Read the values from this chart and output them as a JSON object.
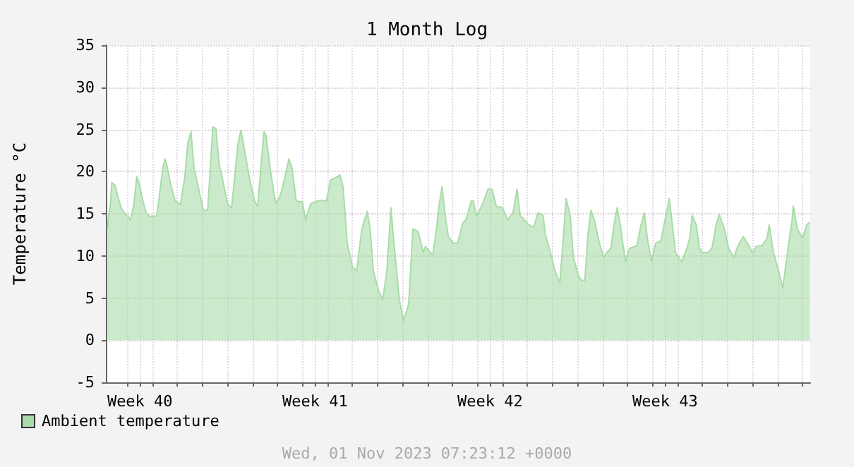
{
  "chart_data": {
    "type": "area",
    "title": "1 Month Log",
    "ylabel": "Temperature °C",
    "annotations": [
      "Wed, 01 Nov 2023 07:23:12 +0000"
    ],
    "xlim": [
      "2023-10-04T03:20",
      "2023-11-01T07:20"
    ],
    "xticks": [
      {
        "value": "2023-10-05T00:00",
        "label": null
      },
      {
        "value": "2023-10-05T12:00",
        "label": "Week 40"
      },
      {
        "value": "2023-10-06T00:00",
        "label": null
      },
      {
        "value": "2023-10-07T00:00",
        "label": null
      },
      {
        "value": "2023-10-08T00:00",
        "label": null
      },
      {
        "value": "2023-10-09T00:00",
        "label": null
      },
      {
        "value": "2023-10-10T00:00",
        "label": null
      },
      {
        "value": "2023-10-11T00:00",
        "label": null
      },
      {
        "value": "2023-10-12T00:00",
        "label": null
      },
      {
        "value": "2023-10-12T12:00",
        "label": "Week 41"
      },
      {
        "value": "2023-10-13T00:00",
        "label": null
      },
      {
        "value": "2023-10-14T00:00",
        "label": null
      },
      {
        "value": "2023-10-15T00:00",
        "label": null
      },
      {
        "value": "2023-10-16T00:00",
        "label": null
      },
      {
        "value": "2023-10-17T00:00",
        "label": null
      },
      {
        "value": "2023-10-18T00:00",
        "label": null
      },
      {
        "value": "2023-10-19T00:00",
        "label": null
      },
      {
        "value": "2023-10-19T12:00",
        "label": "Week 42"
      },
      {
        "value": "2023-10-20T00:00",
        "label": null
      },
      {
        "value": "2023-10-21T00:00",
        "label": null
      },
      {
        "value": "2023-10-22T00:00",
        "label": null
      },
      {
        "value": "2023-10-23T00:00",
        "label": null
      },
      {
        "value": "2023-10-24T00:00",
        "label": null
      },
      {
        "value": "2023-10-25T00:00",
        "label": null
      },
      {
        "value": "2023-10-26T00:00",
        "label": null
      },
      {
        "value": "2023-10-26T12:00",
        "label": "Week 43"
      },
      {
        "value": "2023-10-27T00:00",
        "label": null
      },
      {
        "value": "2023-10-28T00:00",
        "label": null
      },
      {
        "value": "2023-10-29T00:00",
        "label": null
      },
      {
        "value": "2023-10-30T00:00",
        "label": null
      },
      {
        "value": "2023-10-31T00:00",
        "label": null
      },
      {
        "value": "2023-11-01T00:00",
        "label": null
      }
    ],
    "ylim": [
      -5,
      35
    ],
    "yticks": [
      -5,
      0,
      5,
      10,
      15,
      20,
      25,
      30,
      35
    ],
    "grid": true,
    "legend": "bottom left",
    "x": [
      "2023-10-04T05:00",
      "2023-10-04T06:00",
      "2023-10-04T08:00",
      "2023-10-04T09:00",
      "2023-10-04T12:00",
      "2023-10-04T15:00",
      "2023-10-04T18:00",
      "2023-10-04T21:00",
      "2023-10-05T01:00",
      "2023-10-05T03:00",
      "2023-10-05T06:00",
      "2023-10-05T09:00",
      "2023-10-05T11:00",
      "2023-10-05T15:00",
      "2023-10-05T18:00",
      "2023-10-05T21:00",
      "2023-10-06T04:00",
      "2023-10-06T06:00",
      "2023-10-06T10:00",
      "2023-10-06T12:00",
      "2023-10-06T14:00",
      "2023-10-06T18:00",
      "2023-10-06T22:00",
      "2023-10-07T03:00",
      "2023-10-07T07:00",
      "2023-10-07T10:00",
      "2023-10-07T13:00",
      "2023-10-07T16:00",
      "2023-10-07T21:00",
      "2023-10-08T01:00",
      "2023-10-08T05:00",
      "2023-10-08T07:00",
      "2023-10-08T10:00",
      "2023-10-08T13:00",
      "2023-10-08T16:00",
      "2023-10-08T20:00",
      "2023-10-09T00:00",
      "2023-10-09T04:00",
      "2023-10-09T07:00",
      "2023-10-09T10:00",
      "2023-10-09T13:00",
      "2023-10-09T17:00",
      "2023-10-09T22:00",
      "2023-10-10T02:00",
      "2023-10-10T05:00",
      "2023-10-10T08:00",
      "2023-10-10T11:00",
      "2023-10-10T13:00",
      "2023-10-10T17:00",
      "2023-10-10T21:00",
      "2023-10-10T23:00",
      "2023-10-11T03:00",
      "2023-10-11T06:00",
      "2023-10-11T11:00",
      "2023-10-11T14:00",
      "2023-10-11T18:00",
      "2023-10-12T00:00",
      "2023-10-12T03:00",
      "2023-10-12T05:00",
      "2023-10-12T08:00",
      "2023-10-12T14:00",
      "2023-10-12T18:00",
      "2023-10-12T23:00",
      "2023-10-13T03:00",
      "2023-10-13T08:00",
      "2023-10-13T12:00",
      "2023-10-13T15:00",
      "2023-10-13T19:00",
      "2023-10-14T00:00",
      "2023-10-14T04:00",
      "2023-10-14T09:00",
      "2023-10-14T14:00",
      "2023-10-14T17:00",
      "2023-10-14T20:00",
      "2023-10-15T01:00",
      "2023-10-15T05:00",
      "2023-10-15T09:00",
      "2023-10-15T13:00",
      "2023-10-15T15:00",
      "2023-10-15T21:00",
      "2023-10-16T01:00",
      "2023-10-16T06:00",
      "2023-10-16T10:00",
      "2023-10-16T15:00",
      "2023-10-16T20:00",
      "2023-10-16T22:00",
      "2023-10-17T05:00",
      "2023-10-17T08:00",
      "2023-10-17T11:00",
      "2023-10-17T14:00",
      "2023-10-17T17:00",
      "2023-10-17T20:00",
      "2023-10-18T01:00",
      "2023-10-18T05:00",
      "2023-10-18T10:00",
      "2023-10-18T13:00",
      "2023-10-18T18:00",
      "2023-10-18T20:00",
      "2023-10-18T23:00",
      "2023-10-19T04:00",
      "2023-10-19T10:00",
      "2023-10-19T14:00",
      "2023-10-19T18:00",
      "2023-10-20T00:00",
      "2023-10-20T05:00",
      "2023-10-20T10:00",
      "2023-10-20T14:00",
      "2023-10-20T17:00",
      "2023-10-20T21:00",
      "2023-10-21T01:00",
      "2023-10-21T06:00",
      "2023-10-21T10:00",
      "2023-10-21T15:00",
      "2023-10-21T17:00",
      "2023-10-21T22:00",
      "2023-10-22T02:00",
      "2023-10-22T07:00",
      "2023-10-22T10:00",
      "2023-10-22T13:00",
      "2023-10-22T17:00",
      "2023-10-22T20:00",
      "2023-10-23T01:00",
      "2023-10-23T04:00",
      "2023-10-23T07:00",
      "2023-10-23T10:00",
      "2023-10-23T13:00",
      "2023-10-23T16:00",
      "2023-10-23T21:00",
      "2023-10-24T01:00",
      "2023-10-24T04:00",
      "2023-10-24T08:00",
      "2023-10-24T11:00",
      "2023-10-24T14:00",
      "2023-10-24T17:00",
      "2023-10-24T22:00",
      "2023-10-25T02:00",
      "2023-10-25T09:00",
      "2023-10-25T13:00",
      "2023-10-25T16:00",
      "2023-10-25T19:00",
      "2023-10-25T23:00",
      "2023-10-26T03:00",
      "2023-10-26T08:00",
      "2023-10-26T12:00",
      "2023-10-26T16:00",
      "2023-10-26T19:00",
      "2023-10-26T22:00",
      "2023-10-27T04:00",
      "2023-10-27T09:00",
      "2023-10-27T12:00",
      "2023-10-27T14:00",
      "2023-10-27T18:00",
      "2023-10-27T21:00",
      "2023-10-28T00:00",
      "2023-10-28T05:00",
      "2023-10-28T09:00",
      "2023-10-28T13:00",
      "2023-10-28T16:00",
      "2023-10-28T21:00",
      "2023-10-29T01:00",
      "2023-10-29T06:00",
      "2023-10-29T10:00",
      "2023-10-29T15:00",
      "2023-10-29T19:00",
      "2023-10-30T00:00",
      "2023-10-30T04:00",
      "2023-10-30T09:00",
      "2023-10-30T14:00",
      "2023-10-30T16:00",
      "2023-10-30T20:00",
      "2023-10-31T01:00",
      "2023-10-31T05:00",
      "2023-10-31T10:00",
      "2023-10-31T14:00",
      "2023-10-31T15:00",
      "2023-10-31T19:00",
      "2023-11-01T00:00",
      "2023-11-01T04:00",
      "2023-11-01T07:00"
    ],
    "series": [
      {
        "name": "Ambient temperature",
        "color": "#a8dca8",
        "values": [
          13.2,
          14.8,
          16.5,
          18.7,
          18.4,
          17,
          15.7,
          15.1,
          14.6,
          14.3,
          16,
          19.4,
          18.7,
          16.5,
          15.1,
          14.7,
          14.7,
          16.5,
          20.4,
          21.5,
          20.7,
          18.2,
          16.5,
          16.1,
          19.3,
          23.4,
          24.7,
          20.4,
          17.6,
          15.4,
          15.4,
          19.3,
          25.3,
          25.1,
          20.9,
          18.7,
          16.2,
          15.7,
          19.4,
          23.2,
          24.9,
          22.1,
          18.7,
          16.5,
          15.9,
          20.4,
          24.7,
          24.3,
          20.4,
          17.1,
          16.2,
          17.3,
          18.7,
          21.5,
          20.4,
          16.5,
          16.4,
          14.3,
          15.1,
          16.2,
          16.5,
          16.6,
          16.5,
          19,
          19.3,
          19.6,
          18.2,
          11.5,
          8.7,
          8.2,
          13.2,
          15.3,
          13.2,
          8.2,
          5.9,
          4.8,
          8.2,
          15.7,
          12.6,
          4.8,
          2.3,
          4.3,
          13.2,
          12.9,
          10.4,
          11.1,
          10.1,
          12.6,
          15.9,
          18.2,
          14.8,
          12.3,
          11.5,
          11.5,
          14,
          14.3,
          16.5,
          16.5,
          14.8,
          15.9,
          17.9,
          17.9,
          15.9,
          15.7,
          14.3,
          15.1,
          17.9,
          14.8,
          14.3,
          13.7,
          13.4,
          15.1,
          14.8,
          12.6,
          10.4,
          8.4,
          6.8,
          11.5,
          16.8,
          14.8,
          9.8,
          7.6,
          7.1,
          7.1,
          12.6,
          15.4,
          14.3,
          11.5,
          9.8,
          10.4,
          10.9,
          13.7,
          15.7,
          13.7,
          9.3,
          10.9,
          11.2,
          13.7,
          15.1,
          12.1,
          9.3,
          11.5,
          11.8,
          14.3,
          16.8,
          13.7,
          10.4,
          9.3,
          10.9,
          12.3,
          14.8,
          13.7,
          10.9,
          10.4,
          10.4,
          10.9,
          13.7,
          14.9,
          13.2,
          10.9,
          9.8,
          11.2,
          12.3,
          11.5,
          10.4,
          11.2,
          11.2,
          12.1,
          13.7,
          10.4,
          8.2,
          6.2,
          10.9,
          14.3,
          15.9,
          13.2,
          12.1,
          13.7,
          14
        ]
      }
    ]
  }
}
